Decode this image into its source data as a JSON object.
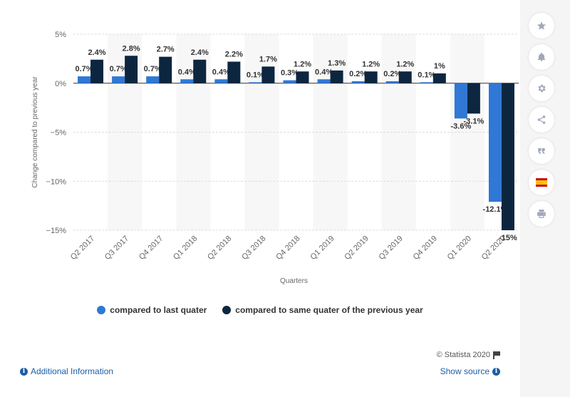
{
  "chart_data": {
    "type": "bar",
    "categories": [
      "Q2 2017",
      "Q3 2017",
      "Q4 2017",
      "Q1 2018",
      "Q2 2018",
      "Q3 2018",
      "Q4 2018",
      "Q1 2019",
      "Q2 2019",
      "Q3 2019",
      "Q4 2019",
      "Q1 2020",
      "Q2 2020"
    ],
    "series": [
      {
        "name": "compared to last quater",
        "values": [
          0.7,
          0.7,
          0.7,
          0.4,
          0.4,
          0.1,
          0.3,
          0.4,
          0.2,
          0.2,
          0.1,
          -3.6,
          -12.1
        ],
        "labels": [
          "0.7%",
          "0.7%",
          "0.7%",
          "0.4%",
          "0.4%",
          "0.1%",
          "0.3%",
          "0.4%",
          "0.2%",
          "0.2%",
          "0.1%",
          "-3.6%",
          "-12.1%"
        ]
      },
      {
        "name": "compared to same quater of the previous year",
        "values": [
          2.4,
          2.8,
          2.7,
          2.4,
          2.2,
          1.7,
          1.2,
          1.3,
          1.2,
          1.2,
          1,
          -3.1,
          -15
        ],
        "labels": [
          "2.4%",
          "2.8%",
          "2.7%",
          "2.4%",
          "2.2%",
          "1.7%",
          "1.2%",
          "1.3%",
          "1.2%",
          "1.2%",
          "1%",
          "-3.1%",
          "-15%"
        ]
      }
    ],
    "yticks": [
      5,
      0,
      -5,
      -10,
      -15
    ],
    "ytick_labels": [
      "5%",
      "0%",
      "−5%",
      "−10%",
      "−15%"
    ],
    "ylim": [
      -15,
      5
    ],
    "xlabel": "Quarters",
    "ylabel": "Change compared to previous year",
    "colors": [
      "#2f78d6",
      "#0d2640"
    ],
    "grid": true,
    "legend_position": "bottom"
  },
  "footer": {
    "copyright": "© Statista 2020",
    "additional_info": "Additional Information",
    "show_source": "Show source"
  },
  "sidebar": {
    "icons": [
      "star-icon",
      "bell-icon",
      "gear-icon",
      "share-icon",
      "quote-icon",
      "flag-spain-icon",
      "print-icon"
    ]
  }
}
